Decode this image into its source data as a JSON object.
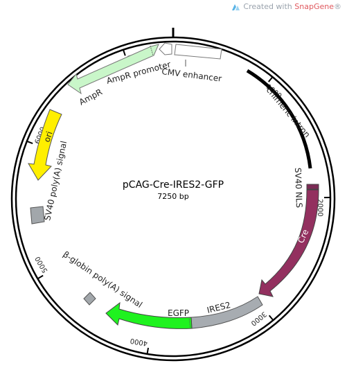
{
  "watermark": {
    "prefix": "Created with ",
    "brand": "SnapGene",
    "suffix": "®"
  },
  "plasmid": {
    "name": "pCAG-Cre-IRES2-GFP",
    "length_label": "7250 bp"
  },
  "ticks": [
    {
      "label": "1000",
      "angle": 39.2
    },
    {
      "label": "2000",
      "angle": 89.5
    },
    {
      "label": "3000",
      "angle": 140.5
    },
    {
      "label": "4000",
      "angle": 189.5
    },
    {
      "label": "5000",
      "angle": 239.5
    },
    {
      "label": "6000",
      "angle": 291.5
    },
    {
      "label": "7000",
      "angle": 341.5
    }
  ],
  "features": [
    {
      "name": "cmv-enhancer",
      "label": "CMV enhancer",
      "color": "#ffffff"
    },
    {
      "name": "chimeric-intron",
      "label": "chimeric intron",
      "color": "#000000"
    },
    {
      "name": "sv40-nls",
      "label": "SV40 NLS",
      "color": "#7b2b55"
    },
    {
      "name": "cre",
      "label": "Cre",
      "color": "#93305f"
    },
    {
      "name": "ires2",
      "label": "IRES2",
      "color": "#a7acb1"
    },
    {
      "name": "egfp",
      "label": "EGFP",
      "color": "#1ff21f"
    },
    {
      "name": "beta-globin-polya",
      "label": "β-globin poly(A) signal",
      "color": "#a2a7ab"
    },
    {
      "name": "sv40-polya",
      "label": "SV40 poly(A) signal",
      "color": "#a2a7ab"
    },
    {
      "name": "ori",
      "label": "ori",
      "color": "#ffef00"
    },
    {
      "name": "ampr",
      "label": "AmpR",
      "color": "#c9f6c9"
    },
    {
      "name": "ampr-promoter",
      "label": "AmpR promoter",
      "color": "#ffffff"
    }
  ]
}
